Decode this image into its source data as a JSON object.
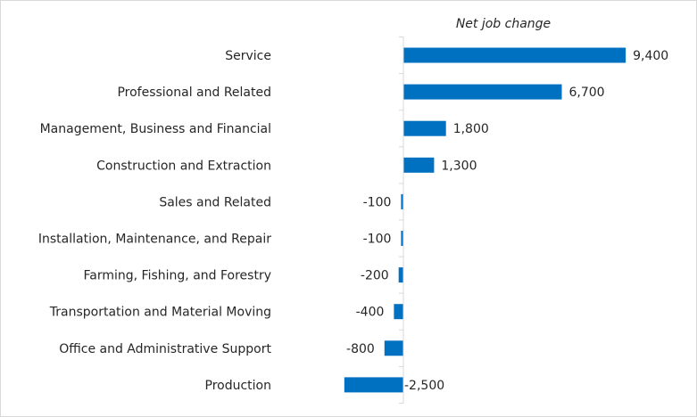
{
  "chart_data": {
    "type": "bar",
    "orientation": "horizontal",
    "title": "Net job change",
    "categories": [
      "Service",
      "Professional and Related",
      "Management, Business and Financial",
      "Construction and Extraction",
      "Sales and Related",
      "Installation, Maintenance, and Repair",
      "Farming, Fishing, and Forestry",
      "Transportation and Material Moving",
      "Office and Administrative Support",
      "Production"
    ],
    "values": [
      9400,
      6700,
      1800,
      1300,
      -100,
      -100,
      -200,
      -400,
      -800,
      -2500
    ],
    "value_labels": [
      "9,400",
      "6,700",
      "1,800",
      "1,300",
      "-100",
      "-100",
      "-200",
      "-400",
      "-800",
      "-2,500"
    ],
    "xlim": [
      -3000,
      11000
    ],
    "bar_color": "#0070C0",
    "axis_color": "#d9d9d9",
    "grid": false,
    "legend": "none"
  }
}
